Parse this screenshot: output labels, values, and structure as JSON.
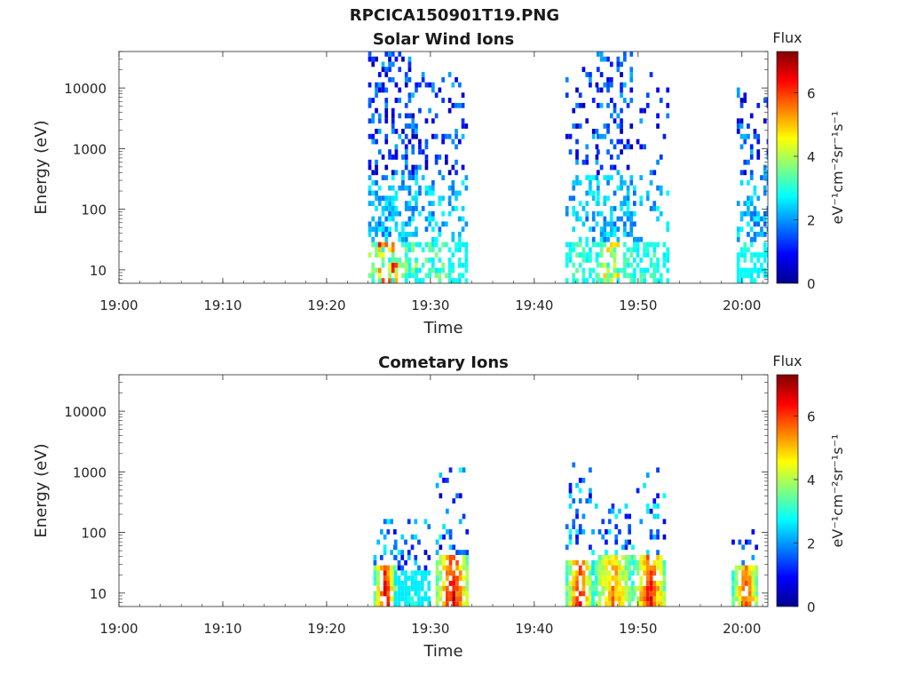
{
  "title": "RPCICA150901T19.PNG",
  "chart_data": [
    {
      "type": "heatmap",
      "title": "Solar Wind Ions",
      "xlabel": "Time",
      "ylabel": "Energy (eV)",
      "x_tick_labels": [
        "19:00",
        "19:10",
        "19:20",
        "19:30",
        "19:40",
        "19:50",
        "20:00"
      ],
      "x_tick_minutes": [
        0,
        10,
        20,
        30,
        40,
        50,
        60
      ],
      "xlim_minutes": [
        0,
        62.5
      ],
      "y_scale": "log",
      "ylim": [
        6,
        40000
      ],
      "y_tick_labels": [
        "10",
        "100",
        "1000",
        "10000"
      ],
      "y_tick_values": [
        10,
        100,
        1000,
        10000
      ],
      "colorbar": {
        "label": "Flux",
        "units": "eV⁻¹cm⁻²sr⁻¹s⁻¹",
        "range": [
          0,
          7.3
        ],
        "tick_labels": [
          "0",
          "2",
          "4",
          "6"
        ],
        "tick_values": [
          0,
          2,
          4,
          6
        ],
        "colormap": "jet"
      },
      "bursts": [
        {
          "t0": 24.0,
          "t1": 28.5,
          "scatter_top_logE": 4.6,
          "scatter_density": 0.35,
          "low_flux": 5.8
        },
        {
          "t0": 28.5,
          "t1": 33.5,
          "scatter_top_logE": 4.2,
          "scatter_density": 0.18,
          "low_flux": 3.0
        },
        {
          "t0": 43.0,
          "t1": 46.0,
          "scatter_top_logE": 4.3,
          "scatter_density": 0.15,
          "low_flux": 2.9
        },
        {
          "t0": 46.0,
          "t1": 49.5,
          "scatter_top_logE": 4.6,
          "scatter_density": 0.32,
          "low_flux": 4.2
        },
        {
          "t0": 49.5,
          "t1": 53.0,
          "scatter_top_logE": 4.2,
          "scatter_density": 0.12,
          "low_flux": 2.6
        },
        {
          "t0": 59.5,
          "t1": 62.5,
          "scatter_top_logE": 4.0,
          "scatter_density": 0.22,
          "low_flux": 2.3
        }
      ]
    },
    {
      "type": "heatmap",
      "title": "Cometary Ions",
      "xlabel": "Time",
      "ylabel": "Energy (eV)",
      "x_tick_labels": [
        "19:00",
        "19:10",
        "19:20",
        "19:30",
        "19:40",
        "19:50",
        "20:00"
      ],
      "x_tick_minutes": [
        0,
        10,
        20,
        30,
        40,
        50,
        60
      ],
      "xlim_minutes": [
        0,
        62.5
      ],
      "y_scale": "log",
      "ylim": [
        6,
        40000
      ],
      "y_tick_labels": [
        "10",
        "100",
        "1000",
        "10000"
      ],
      "y_tick_values": [
        10,
        100,
        1000,
        10000
      ],
      "colorbar": {
        "label": "Flux",
        "units": "eV⁻¹cm⁻²sr⁻¹s⁻¹",
        "range": [
          0,
          7.3
        ],
        "tick_labels": [
          "0",
          "2",
          "4",
          "6"
        ],
        "tick_values": [
          0,
          2,
          4,
          6
        ],
        "colormap": "jet"
      },
      "bursts": [
        {
          "t0": 24.5,
          "t1": 26.5,
          "core_flux": 6.7,
          "core_top_logE": 1.45,
          "scatter_top_logE": 2.3,
          "scatter_density": 0.25
        },
        {
          "t0": 26.5,
          "t1": 30.0,
          "core_flux": 2.8,
          "core_top_logE": 1.3,
          "scatter_top_logE": 2.2,
          "scatter_density": 0.28
        },
        {
          "t0": 30.5,
          "t1": 33.5,
          "core_flux": 6.9,
          "core_top_logE": 1.6,
          "scatter_top_logE": 3.2,
          "scatter_density": 0.2
        },
        {
          "t0": 43.0,
          "t1": 45.5,
          "core_flux": 6.5,
          "core_top_logE": 1.5,
          "scatter_top_logE": 3.2,
          "scatter_density": 0.22
        },
        {
          "t0": 45.5,
          "t1": 49.5,
          "core_flux": 5.6,
          "core_top_logE": 1.6,
          "scatter_top_logE": 2.5,
          "scatter_density": 0.28
        },
        {
          "t0": 49.5,
          "t1": 52.5,
          "core_flux": 6.6,
          "core_top_logE": 1.6,
          "scatter_top_logE": 3.0,
          "scatter_density": 0.2
        },
        {
          "t0": 59.0,
          "t1": 61.5,
          "core_flux": 6.0,
          "core_top_logE": 1.4,
          "scatter_top_logE": 2.1,
          "scatter_density": 0.25
        }
      ]
    }
  ]
}
